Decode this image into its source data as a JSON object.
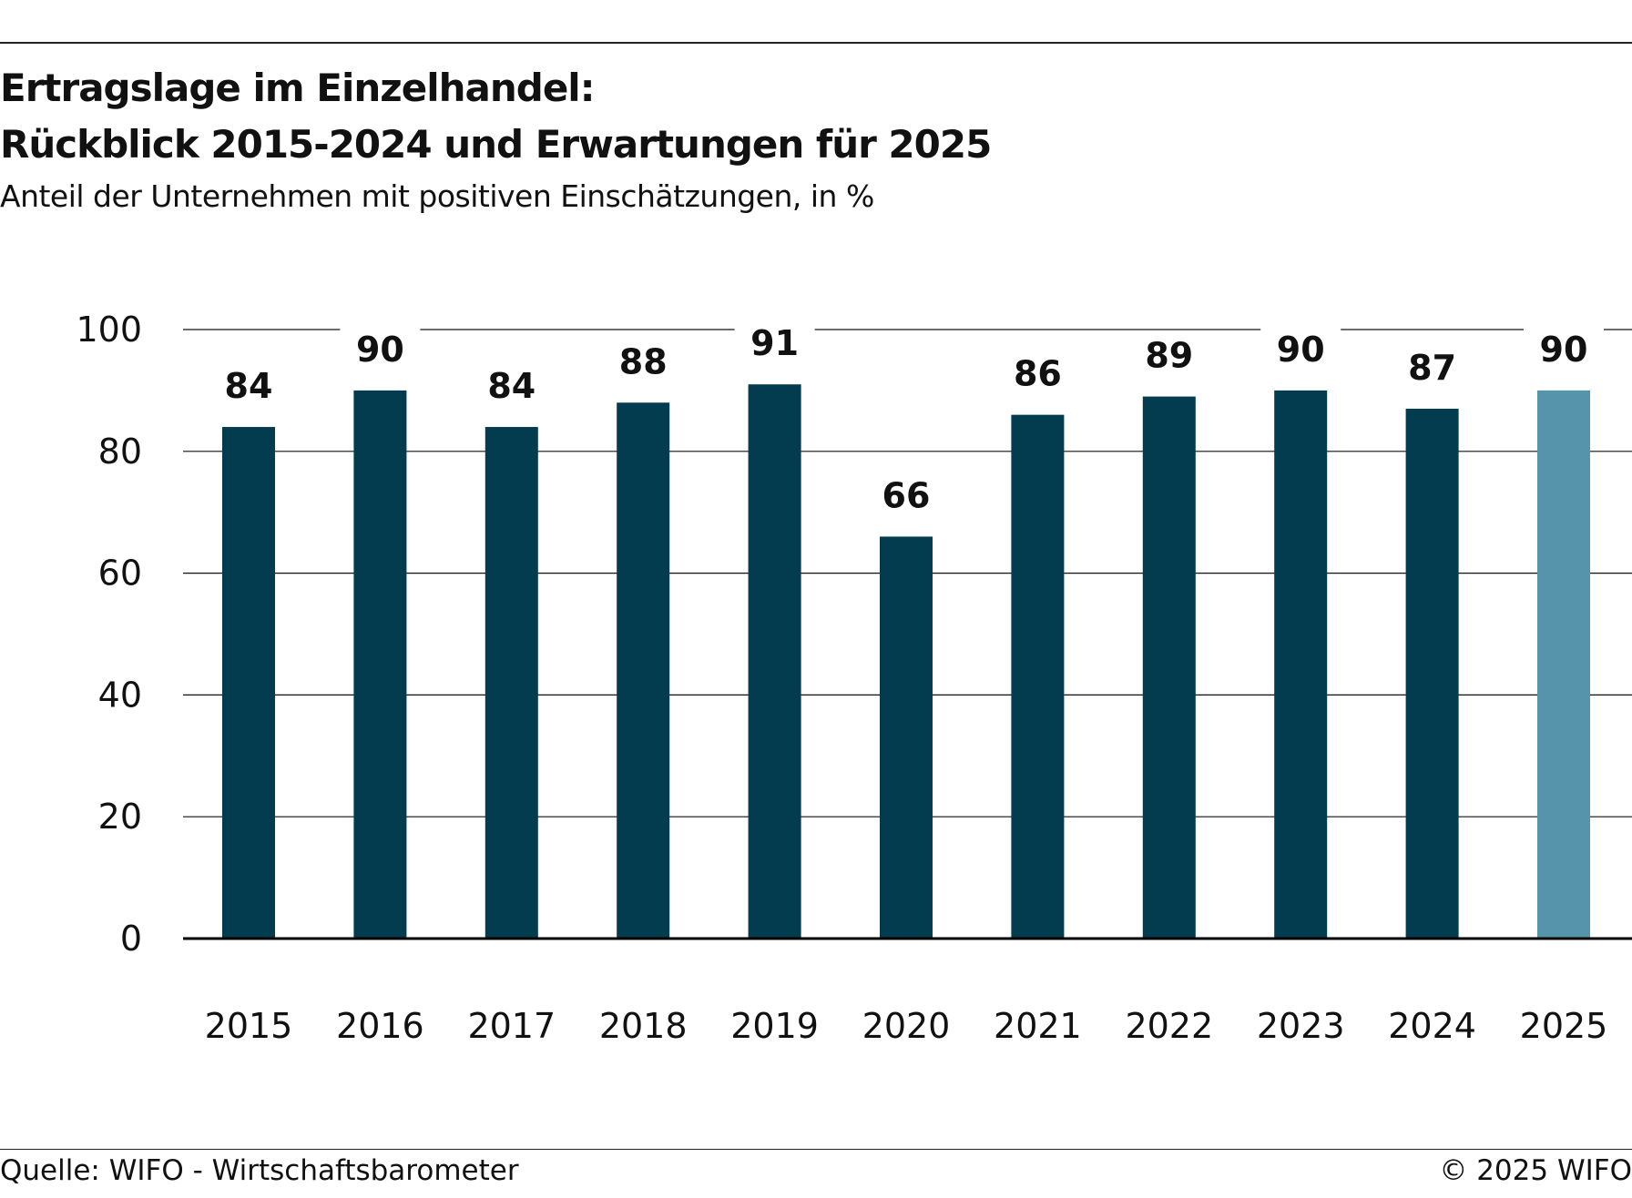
{
  "title_lines": [
    "Ertragslage im Einzelhandel:",
    "Rückblick 2015-2024 und Erwartungen für 2025"
  ],
  "subtitle": "Anteil der Unternehmen mit positiven Einschätzungen, in %",
  "source": "Quelle: WIFO - Wirtschaftsbarometer",
  "copyright": "© 2025 WIFO",
  "colors": {
    "actual": "#033b4f",
    "expectation": "#5694ab",
    "grid": "#111111"
  },
  "chart_data": {
    "type": "bar",
    "title": "Ertragslage im Einzelhandel: Rückblick 2015-2024 und Erwartungen für 2025",
    "subtitle": "Anteil der Unternehmen mit positiven Einschätzungen, in %",
    "xlabel": "",
    "ylabel": "",
    "categories": [
      "2015",
      "2016",
      "2017",
      "2018",
      "2019",
      "2020",
      "2021",
      "2022",
      "2023",
      "2024",
      "2025"
    ],
    "values": [
      84,
      90,
      84,
      88,
      91,
      66,
      86,
      89,
      90,
      87,
      90
    ],
    "data_labels": [
      "84",
      "90",
      "84",
      "88",
      "91",
      "66",
      "86",
      "89",
      "90",
      "87",
      "90"
    ],
    "highlight_category": "2025",
    "ylim": [
      0,
      100
    ],
    "yticks": [
      0,
      20,
      40,
      60,
      80,
      100
    ],
    "grid": true,
    "legend": "none"
  }
}
